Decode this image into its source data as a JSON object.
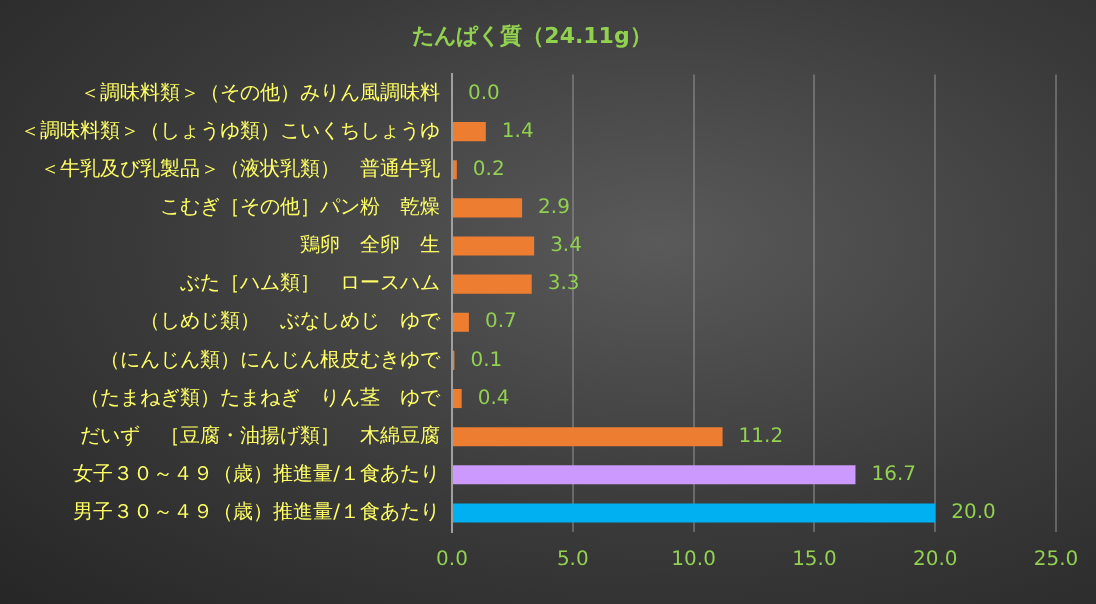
{
  "chart_data": {
    "type": "bar",
    "orientation": "horizontal",
    "title": "たんぱく質（24.11g）",
    "categories": [
      "＜調味料類＞（その他）みりん風調味料",
      "＜調味料類＞（しょうゆ類）こいくちしょうゆ",
      "＜牛乳及び乳製品＞（液状乳類）　普通牛乳",
      "こむぎ［その他］パン粉　乾燥",
      "鶏卵　全卵　生",
      "ぶた［ハム類］　ロースハム",
      "（しめじ類）　ぶなしめじ　ゆで",
      "（にんじん類）にんじん根皮むきゆで",
      "（たまねぎ類）たまねぎ　りん茎　ゆで",
      "だいず　［豆腐・油揚げ類］　木綿豆腐",
      "女子３０～４９（歳）推進量/１食あたり",
      "男子３０～４９（歳）推進量/１食あたり"
    ],
    "values": [
      0.0,
      1.4,
      0.2,
      2.9,
      3.4,
      3.3,
      0.7,
      0.1,
      0.4,
      11.2,
      16.7,
      20.0
    ],
    "colors": [
      "#ed7d31",
      "#ed7d31",
      "#ed7d31",
      "#ed7d31",
      "#ed7d31",
      "#ed7d31",
      "#ed7d31",
      "#ed7d31",
      "#ed7d31",
      "#ed7d31",
      "#cc99ff",
      "#00b0f0"
    ],
    "xlim": [
      0,
      25
    ],
    "xticks": [
      {
        "value": 0,
        "label": "0.0"
      },
      {
        "value": 5,
        "label": "5.0"
      },
      {
        "value": 10,
        "label": "10.0"
      },
      {
        "value": 15,
        "label": "15.0"
      },
      {
        "value": 20,
        "label": "20.0"
      },
      {
        "value": 25,
        "label": "25.0"
      }
    ],
    "value_labels": [
      "0.0",
      "1.4",
      "0.2",
      "2.9",
      "3.4",
      "3.3",
      "0.7",
      "0.1",
      "0.4",
      "11.2",
      "16.7",
      "20.0"
    ],
    "grid": "x",
    "legend": false
  }
}
